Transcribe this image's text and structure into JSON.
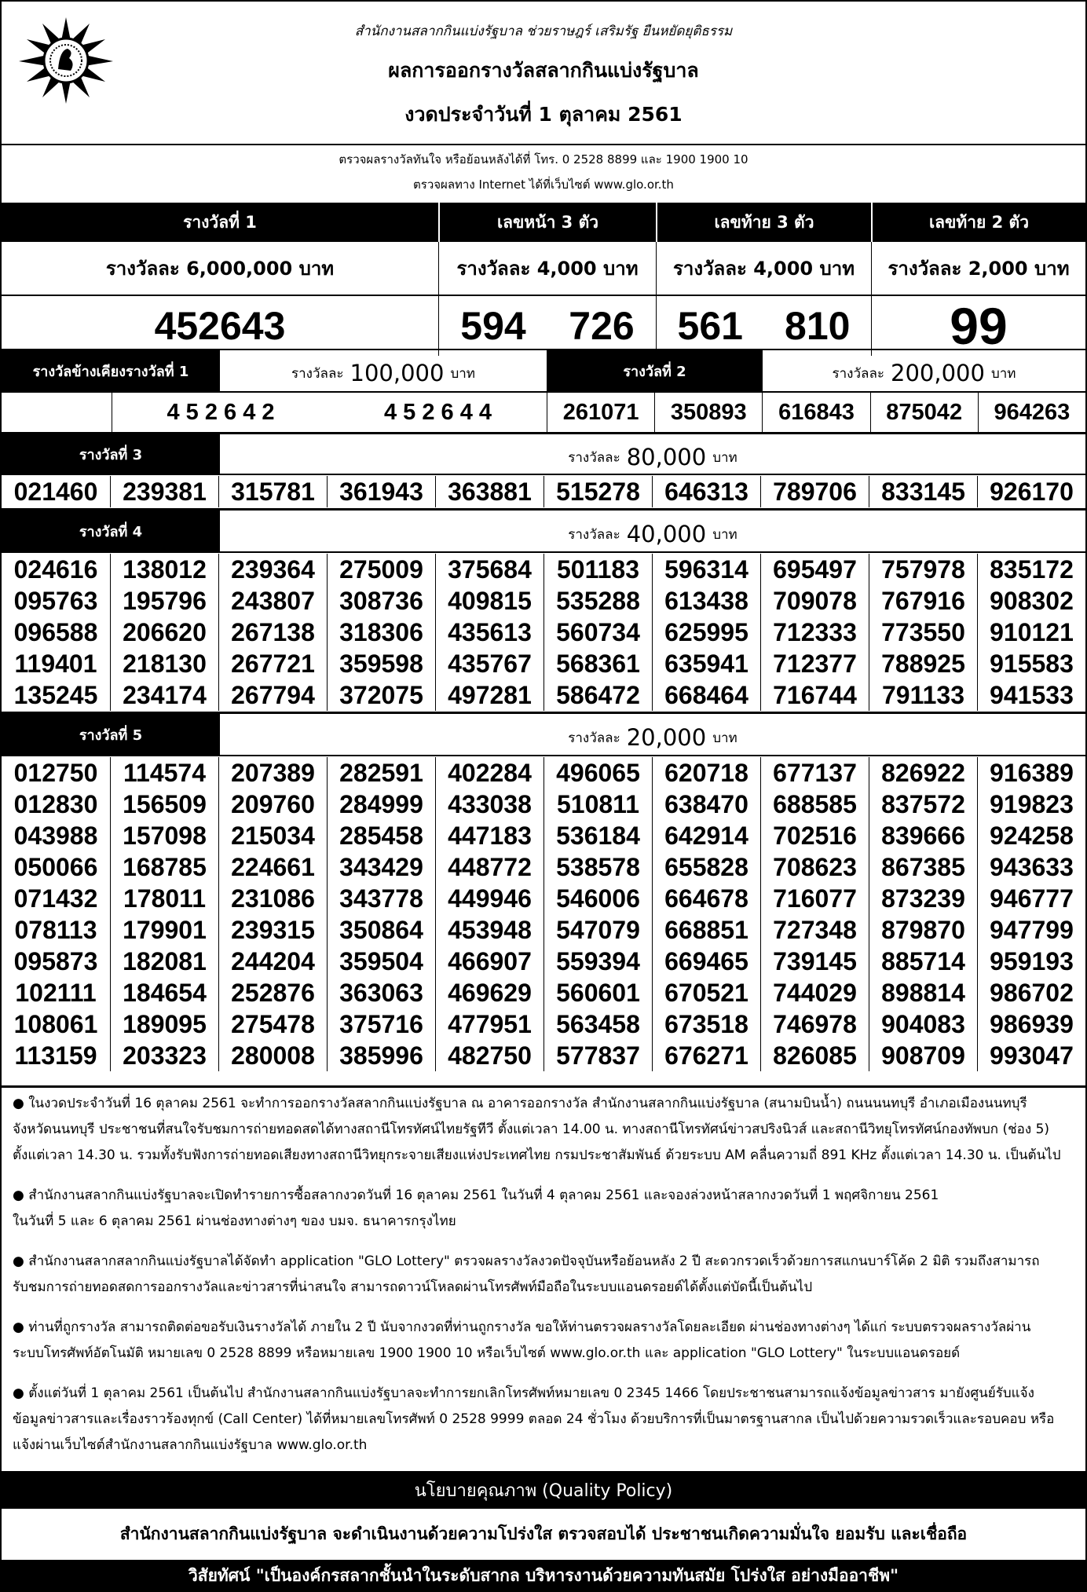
{
  "header": {
    "motto": "สำนักงานสลากกินแบ่งรัฐบาล   ช่วยราษฎร์   เสริมรัฐ   ยืนหยัดยุติธรรม",
    "title": "ผลการออกรางวัลสลากกินแบ่งรัฐบาล",
    "draw_date": "งวดประจำวันที่ 1 ตุลาคม 2561",
    "phone_line": "ตรวจผลรางวัลทันใจ  หรือย้อนหลังได้ที่  โทร. 0 2528 8899 และ 1900 1900 10",
    "web_line": "ตรวจผลทาง Internet ได้ที่เว็บไซต์  www.glo.or.th"
  },
  "top": {
    "first": {
      "label": "รางวัลที่ 1",
      "amount": "รางวัลละ  6,000,000 บาท",
      "number": "452643"
    },
    "front3": {
      "label": "เลขหน้า 3 ตัว",
      "amount": "รางวัลละ  4,000 บาท",
      "numbers": [
        "594",
        "726"
      ]
    },
    "last3": {
      "label": "เลขท้าย 3 ตัว",
      "amount": "รางวัลละ  4,000 บาท",
      "numbers": [
        "561",
        "810"
      ]
    },
    "last2": {
      "label": "เลขท้าย 2 ตัว",
      "amount": "รางวัลละ  2,000 บาท",
      "number": "99"
    }
  },
  "near_first": {
    "label": "รางวัลข้างเคียงรางวัลที่ 1",
    "amount_prefix": "รางวัลละ",
    "amount": "100,000",
    "unit": "บาท",
    "numbers": [
      "4 5 2 6 4 2",
      "4 5 2 6 4 4"
    ]
  },
  "second": {
    "label": "รางวัลที่  2",
    "amount_prefix": "รางวัลละ",
    "amount": "200,000",
    "unit": "บาท",
    "numbers": [
      "261071",
      "350893",
      "616843",
      "875042",
      "964263"
    ]
  },
  "third": {
    "label": "รางวัลที่  3",
    "amount_prefix": "รางวัลละ",
    "amount": "80,000",
    "unit": "บาท",
    "numbers": [
      "021460",
      "239381",
      "315781",
      "361943",
      "363881",
      "515278",
      "646313",
      "789706",
      "833145",
      "926170"
    ]
  },
  "fourth": {
    "label": "รางวัลที่  4",
    "amount_prefix": "รางวัลละ",
    "amount": "40,000",
    "unit": "บาท",
    "numbers": [
      "024616",
      "138012",
      "239364",
      "275009",
      "375684",
      "501183",
      "596314",
      "695497",
      "757978",
      "835172",
      "095763",
      "195796",
      "243807",
      "308736",
      "409815",
      "535288",
      "613438",
      "709078",
      "767916",
      "908302",
      "096588",
      "206620",
      "267138",
      "318306",
      "435613",
      "560734",
      "625995",
      "712333",
      "773550",
      "910121",
      "119401",
      "218130",
      "267721",
      "359598",
      "435767",
      "568361",
      "635941",
      "712377",
      "788925",
      "915583",
      "135245",
      "234174",
      "267794",
      "372075",
      "497281",
      "586472",
      "668464",
      "716744",
      "791133",
      "941533"
    ]
  },
  "fifth": {
    "label": "รางวัลที่  5",
    "amount_prefix": "รางวัลละ",
    "amount": "20,000",
    "unit": "บาท",
    "numbers": [
      "012750",
      "114574",
      "207389",
      "282591",
      "402284",
      "496065",
      "620718",
      "677137",
      "826922",
      "916389",
      "012830",
      "156509",
      "209760",
      "284999",
      "433038",
      "510811",
      "638470",
      "688585",
      "837572",
      "919823",
      "043988",
      "157098",
      "215034",
      "285458",
      "447183",
      "536184",
      "642914",
      "702516",
      "839666",
      "924258",
      "050066",
      "168785",
      "224661",
      "343429",
      "448772",
      "538578",
      "655828",
      "708623",
      "867385",
      "943633",
      "071432",
      "178011",
      "231086",
      "343778",
      "449946",
      "546006",
      "664678",
      "716077",
      "873239",
      "946777",
      "078113",
      "179901",
      "239315",
      "350864",
      "453948",
      "547079",
      "668851",
      "727348",
      "879870",
      "947799",
      "095873",
      "182081",
      "244204",
      "359504",
      "466907",
      "559394",
      "669465",
      "739145",
      "885714",
      "959193",
      "102111",
      "184654",
      "252876",
      "363063",
      "469629",
      "560601",
      "670521",
      "744029",
      "898814",
      "986702",
      "108061",
      "189095",
      "275478",
      "375716",
      "477951",
      "563458",
      "673518",
      "746978",
      "904083",
      "986939",
      "113159",
      "203323",
      "280008",
      "385996",
      "482750",
      "577837",
      "676271",
      "826085",
      "908709",
      "993047"
    ]
  },
  "notes": [
    [
      "● ในงวดประจำวันที่ 16 ตุลาคม 2561 จะทำการออกรางวัลสลากกินแบ่งรัฐบาล ณ อาคารออกรางวัล สำนักงานสลากกินแบ่งรัฐบาล (สนามบินน้ำ) ถนนนนทบุรี อำเภอเมืองนนทบุรี",
      "จังหวัดนนทบุรี ประชาชนที่สนใจรับชมการถ่ายทอดสดได้ทางสถานีโทรทัศน์ไทยรัฐทีวี ตั้งแต่เวลา 14.00 น. ทางสถานีโทรทัศน์ข่าวสปริงนิวส์ และสถานีวิทยุโทรทัศน์กองทัพบก (ช่อง 5)",
      "ตั้งแต่เวลา 14.30 น. รวมทั้งรับฟังการถ่ายทอดเสียงทางสถานีวิทยุกระจายเสียงแห่งประเทศไทย กรมประชาสัมพันธ์ ด้วยระบบ AM คลื่นความถี่ 891 KHz ตั้งแต่เวลา 14.30 น. เป็นต้นไป"
    ],
    [
      "● สำนักงานสลากกินแบ่งรัฐบาลจะเปิดทำรายการซื้อสลากงวดวันที่ 16 ตุลาคม 2561 ในวันที่ 4 ตุลาคม 2561 และจองล่วงหน้าสลากงวดวันที่ 1 พฤศจิกายน 2561",
      "ในวันที่ 5 และ 6 ตุลาคม 2561 ผ่านช่องทางต่างๆ ของ บมจ. ธนาคารกรุงไทย"
    ],
    [
      "● สำนักงานสลากสลากกินแบ่งรัฐบาลได้จัดทำ application \"GLO Lottery\" ตรวจผลรางวัลงวดปัจจุบันหรือย้อนหลัง 2 ปี สะดวกรวดเร็วด้วยการสแกนบาร์โค้ด 2 มิติ รวมถึงสามารถ",
      "รับชมการถ่ายทอดสดการออกรางวัลและข่าวสารที่น่าสนใจ สามารถดาวน์โหลดผ่านโทรศัพท์มือถือในระบบแอนดรอยด์ได้ตั้งแต่บัดนี้เป็นต้นไป"
    ],
    [
      "● ท่านที่ถูกรางวัล สามารถติดต่อขอรับเงินรางวัลได้ ภายใน 2 ปี นับจากงวดที่ท่านถูกรางวัล ขอให้ท่านตรวจผลรางวัลโดยละเอียด ผ่านช่องทางต่างๆ ได้แก่ ระบบตรวจผลรางวัลผ่าน",
      "ระบบโทรศัพท์อัตโนมัติ หมายเลข 0 2528 8899 หรือหมายเลข 1900 1900 10 หรือเว็บไซต์ www.glo.or.th และ application \"GLO Lottery\" ในระบบแอนดรอยด์"
    ],
    [
      "● ตั้งแต่วันที่ 1 ตุลาคม 2561 เป็นต้นไป สำนักงานสลากกินแบ่งรัฐบาลจะทำการยกเลิกโทรศัพท์หมายเลข 0 2345 1466 โดยประชาชนสามารถแจ้งข้อมูลข่าวสาร มายังศูนย์รับแจ้ง",
      "ข้อมูลข่าวสารและเรื่องราวร้องทุกข์ (Call Center) ได้ที่หมายเลขโทรศัพท์ 0 2528 9999 ตลอด 24 ชั่วโมง ด้วยบริการที่เป็นมาตรฐานสากล เป็นไปด้วยความรวดเร็วและรอบคอบ หรือ",
      "แจ้งผ่านเว็บไซต์สำนักงานสลากกินแบ่งรัฐบาล www.glo.or.th"
    ]
  ],
  "footer": {
    "policy_title": "นโยบายคุณภาพ (Quality Policy)",
    "policy_text": "สำนักงานสลากกินแบ่งรัฐบาล จะดำเนินงานด้วยความโปร่งใส ตรวจสอบได้ ประชาชนเกิดความมั่นใจ ยอมรับ และเชื่อถือ",
    "vision": "วิสัยทัศน์ \"เป็นองค์กรสลากชั้นนำในระดับสากล บริหารงานด้วยความทันสมัย โปร่งใส อย่างมืออาชีพ\""
  },
  "icons": {
    "logo": "glo-emblem"
  }
}
